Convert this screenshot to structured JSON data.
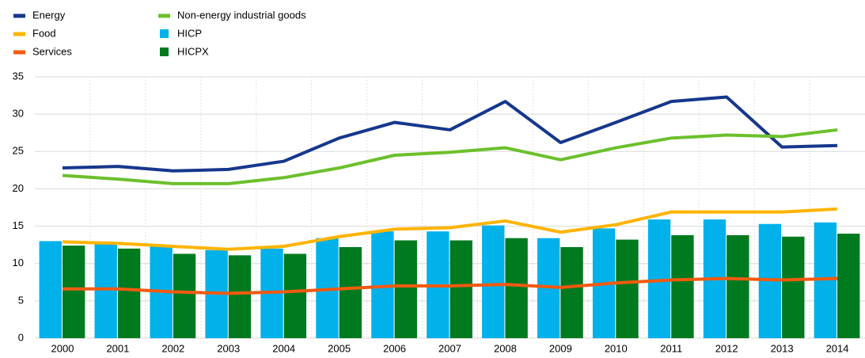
{
  "chart_data": {
    "type": "combo",
    "categories": [
      "2000",
      "2001",
      "2002",
      "2003",
      "2004",
      "2005",
      "2006",
      "2007",
      "2008",
      "2009",
      "2010",
      "2011",
      "2012",
      "2013",
      "2014"
    ],
    "series": [
      {
        "name": "Energy",
        "color": "#16378c",
        "type": "line",
        "values": [
          22.8,
          23.0,
          22.4,
          22.6,
          23.7,
          26.8,
          28.9,
          27.9,
          31.7,
          26.2,
          28.9,
          31.7,
          32.3,
          25.6,
          25.8
        ]
      },
      {
        "name": "Food",
        "color": "#ffb400",
        "type": "line",
        "values": [
          12.9,
          12.7,
          12.3,
          11.9,
          12.3,
          13.6,
          14.6,
          14.8,
          15.7,
          14.2,
          15.2,
          16.9,
          16.9,
          16.9,
          17.3
        ]
      },
      {
        "name": "Services",
        "color": "#f25a0f",
        "type": "line",
        "values": [
          6.6,
          6.6,
          6.2,
          6.0,
          6.2,
          6.6,
          7.0,
          7.0,
          7.2,
          6.8,
          7.4,
          7.8,
          8.0,
          7.8,
          8.0
        ]
      },
      {
        "name": "Non-energy industrial goods",
        "color": "#6cc02c",
        "type": "line",
        "values": [
          21.8,
          21.3,
          20.7,
          20.7,
          21.5,
          22.8,
          24.5,
          24.9,
          25.5,
          23.9,
          25.5,
          26.8,
          27.2,
          27.0,
          27.9
        ]
      },
      {
        "name": "HICP",
        "color": "#00b1ea",
        "type": "bar",
        "values": [
          13.0,
          12.8,
          12.4,
          11.8,
          12.0,
          13.4,
          14.3,
          14.3,
          15.1,
          13.4,
          14.7,
          15.9,
          15.9,
          15.3,
          15.5
        ]
      },
      {
        "name": "HICPX",
        "color": "#007a1f",
        "type": "bar",
        "values": [
          12.4,
          12.0,
          11.3,
          11.1,
          11.3,
          12.2,
          13.1,
          13.1,
          13.4,
          12.2,
          13.2,
          13.8,
          13.8,
          13.6,
          14.0
        ]
      }
    ],
    "ylim": [
      0,
      35
    ],
    "yticks": [
      0,
      5,
      10,
      15,
      20,
      25,
      30,
      35
    ],
    "grid": true
  }
}
